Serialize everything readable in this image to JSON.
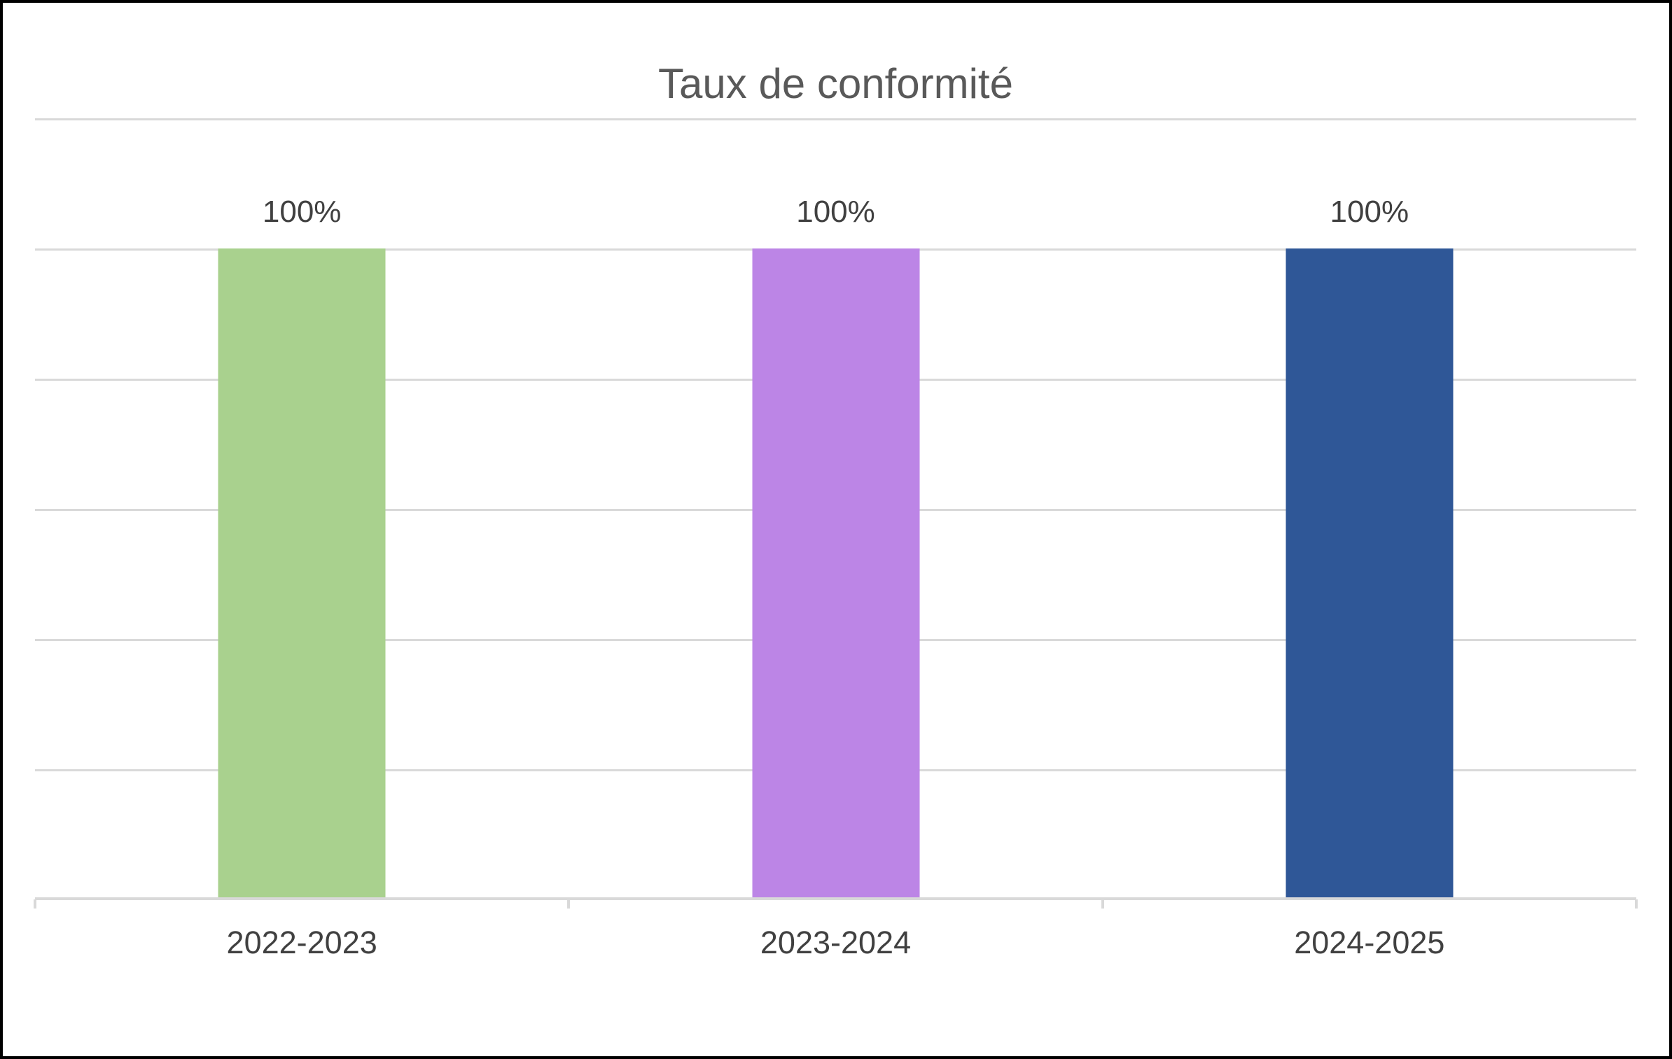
{
  "title": "Taux de conformité",
  "colors": {
    "background": "#FFFFFF",
    "frame_border": "#000000",
    "title_text": "#595959",
    "label_text": "#404040",
    "gridline": "#D9D9D9",
    "axis_line": "#D9D9D9"
  },
  "chart_data": {
    "type": "bar",
    "title": "Taux de conformité",
    "categories": [
      "2022-2023",
      "2023-2024",
      "2024-2025"
    ],
    "values": [
      100,
      100,
      100
    ],
    "value_labels": [
      "100%",
      "100%",
      "100%"
    ],
    "bar_colors": [
      "#A9D18E",
      "#BC85E6",
      "#2F5797"
    ],
    "xlabel": "",
    "ylabel": "",
    "ylim": [
      0,
      120
    ],
    "gridline_interval": 20,
    "grid": true,
    "legend": false,
    "y_axis_labels_visible": false
  }
}
